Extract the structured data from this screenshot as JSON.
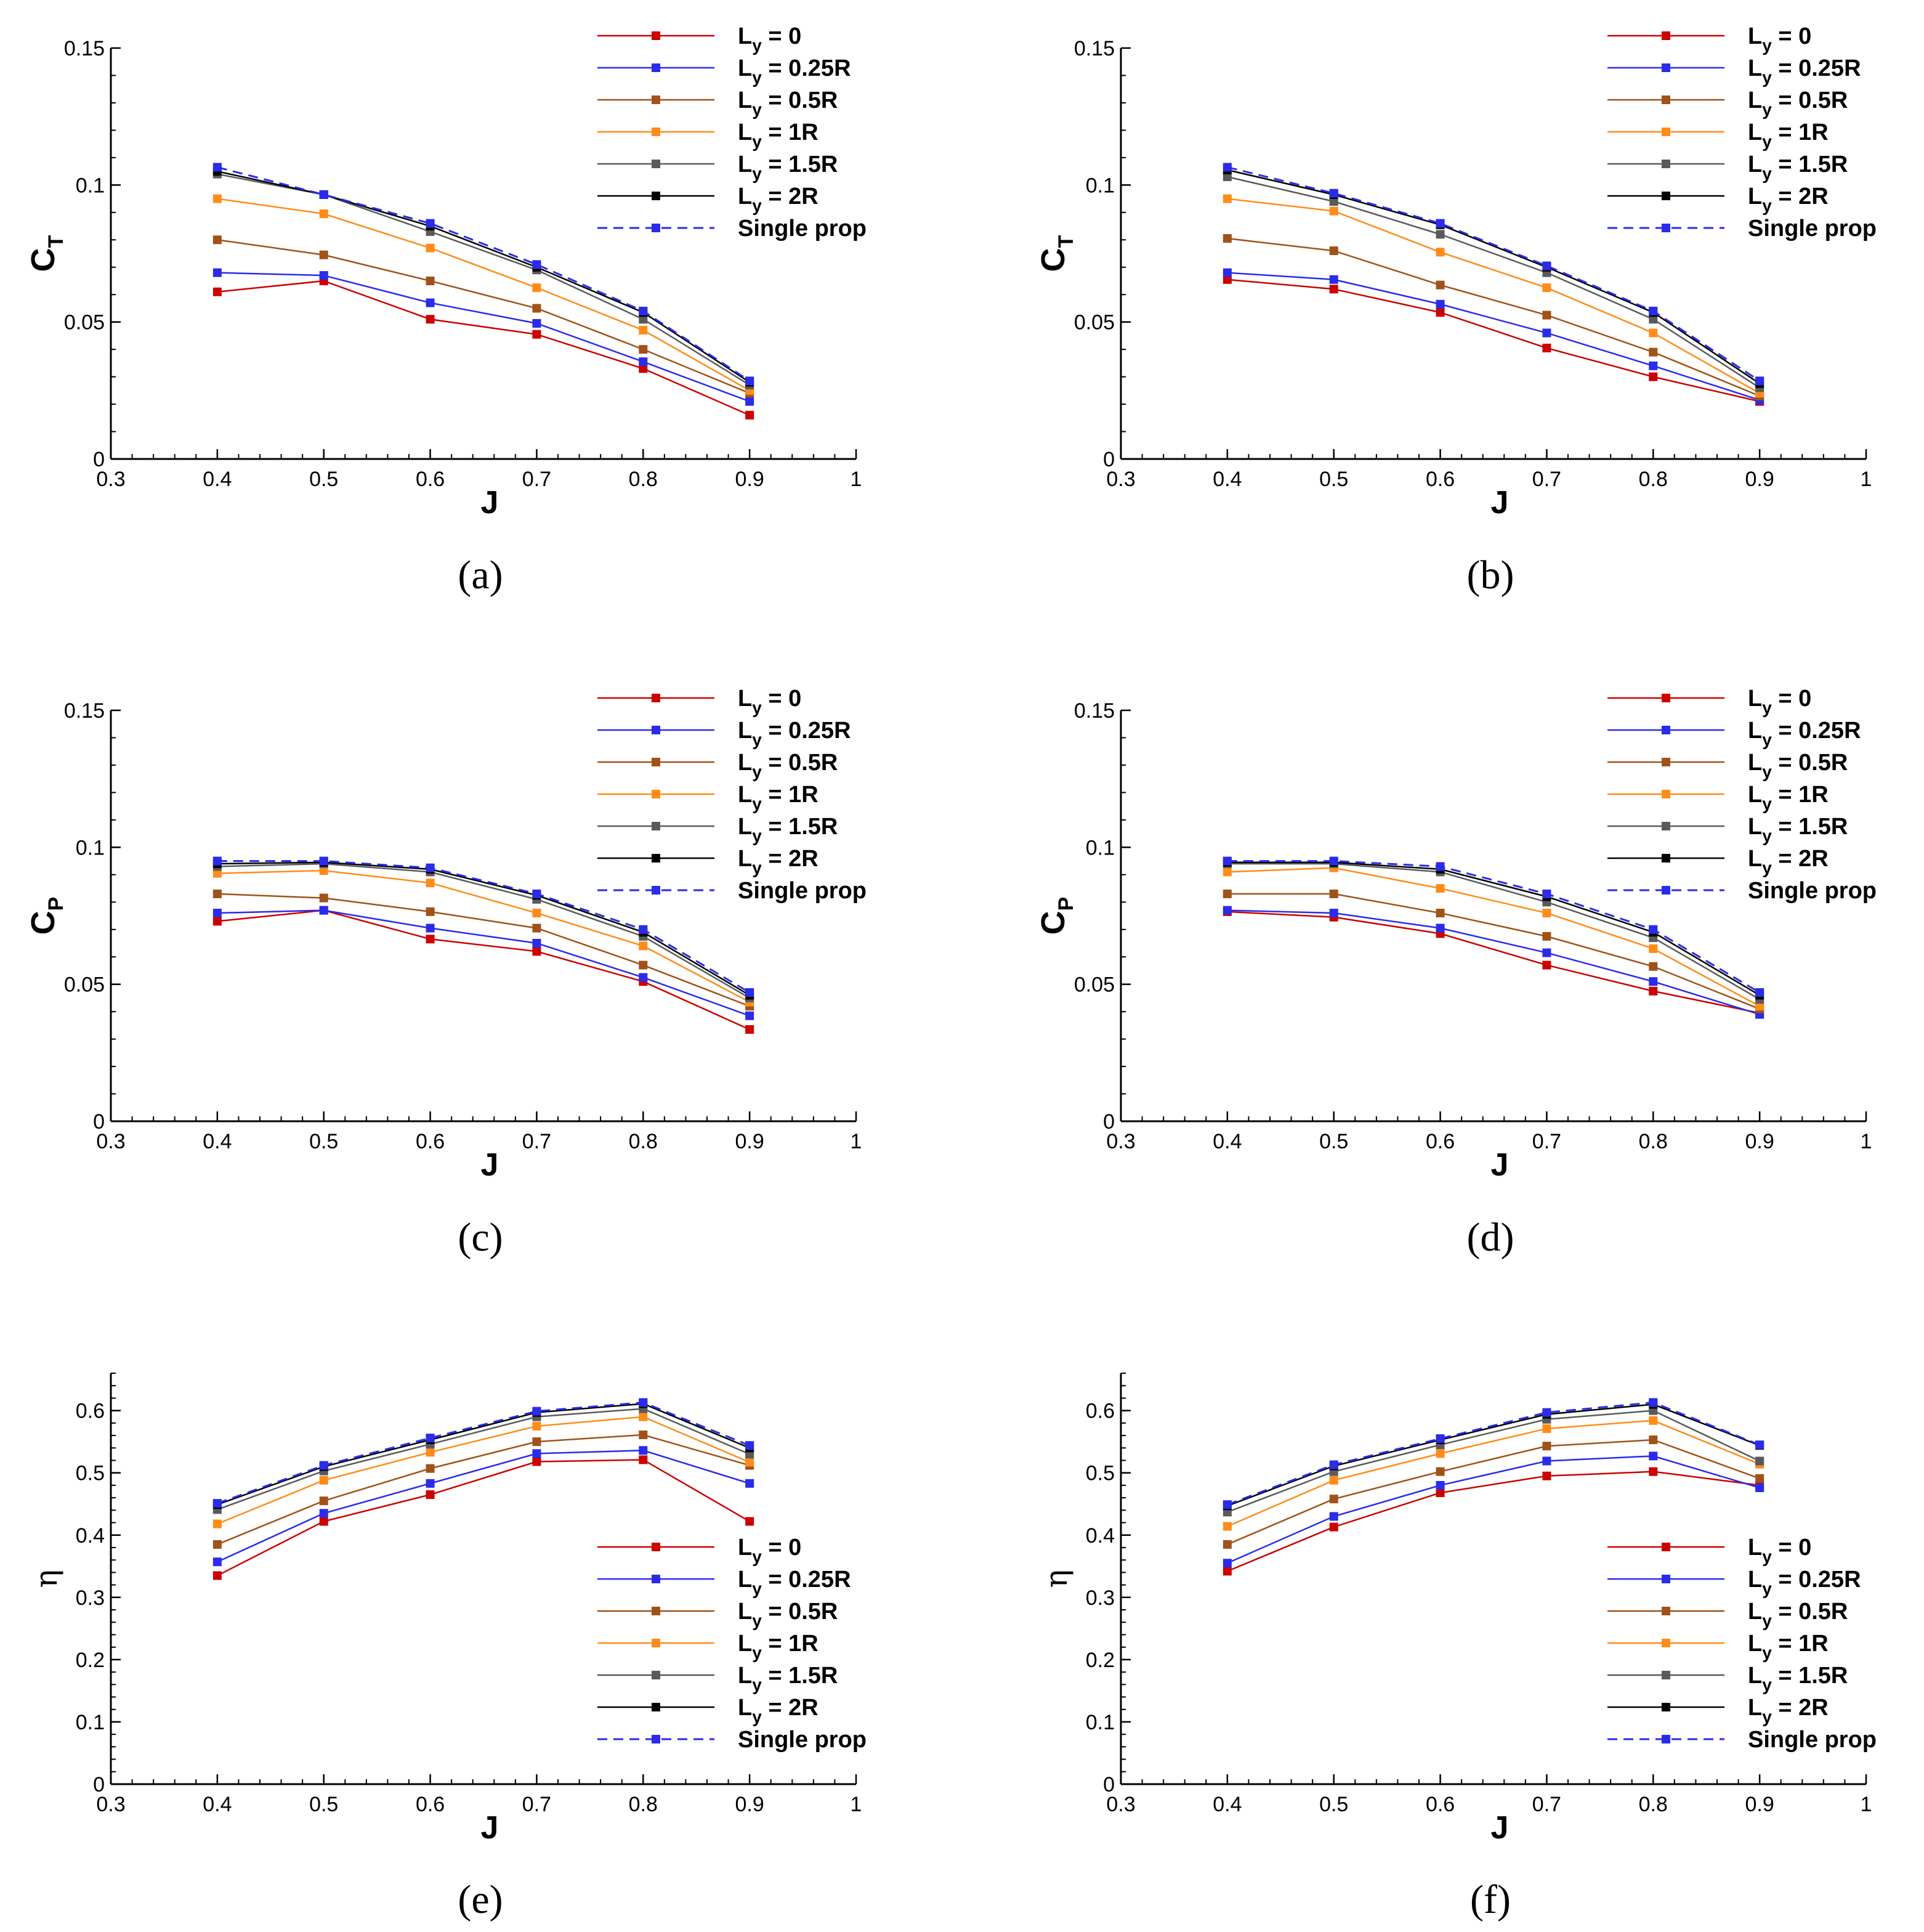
{
  "colors": {
    "Ly0": "#cc0000",
    "Ly025": "#2b2bea",
    "Ly05": "#a0521a",
    "Ly1": "#ff8c1a",
    "Ly15": "#5a5a5a",
    "Ly2": "#000000",
    "single": "#2b2bea"
  },
  "legend": [
    {
      "key": "Ly0",
      "base": "L",
      "sub": "y",
      "rest": " = 0"
    },
    {
      "key": "Ly025",
      "base": "L",
      "sub": "y",
      "rest": " = 0.25R"
    },
    {
      "key": "Ly05",
      "base": "L",
      "sub": "y",
      "rest": " = 0.5R"
    },
    {
      "key": "Ly1",
      "base": "L",
      "sub": "y",
      "rest": " = 1R"
    },
    {
      "key": "Ly15",
      "base": "L",
      "sub": "y",
      "rest": " = 1.5R"
    },
    {
      "key": "Ly2",
      "base": "L",
      "sub": "y",
      "rest": " = 2R"
    },
    {
      "key": "single",
      "base": "Single prop",
      "sub": "",
      "rest": ""
    }
  ],
  "chart_data": [
    {
      "type": "line",
      "caption": "(a)",
      "legend_position": "top-right",
      "ylabel": "C",
      "ylabel_sub": "T",
      "xlabel": "J",
      "xlim": [
        0.3,
        1
      ],
      "ylim": [
        0,
        0.15
      ],
      "xticks": [
        "0.3",
        "0.4",
        "0.5",
        "0.6",
        "0.7",
        "0.8",
        "0.9",
        "1"
      ],
      "yticks": [
        "0",
        "0.05",
        "0.1",
        "0.15"
      ],
      "x": [
        0.4,
        0.5,
        0.6,
        0.7,
        0.8,
        0.9
      ],
      "series": [
        {
          "key": "Ly0",
          "values": [
            0.061,
            0.065,
            0.051,
            0.0455,
            0.033,
            0.016
          ]
        },
        {
          "key": "Ly025",
          "values": [
            0.068,
            0.067,
            0.057,
            0.0495,
            0.0355,
            0.021
          ]
        },
        {
          "key": "Ly05",
          "values": [
            0.08,
            0.0745,
            0.065,
            0.055,
            0.04,
            0.024
          ]
        },
        {
          "key": "Ly1",
          "values": [
            0.095,
            0.0895,
            0.077,
            0.0625,
            0.047,
            0.025
          ]
        },
        {
          "key": "Ly15",
          "values": [
            0.104,
            0.0965,
            0.083,
            0.069,
            0.051,
            0.027
          ]
        },
        {
          "key": "Ly2",
          "values": [
            0.105,
            0.0965,
            0.085,
            0.07,
            0.0535,
            0.028
          ]
        },
        {
          "key": "single",
          "values": [
            0.1065,
            0.0965,
            0.086,
            0.071,
            0.054,
            0.0285
          ],
          "dashed": true
        }
      ]
    },
    {
      "type": "line",
      "caption": "(b)",
      "legend_position": "top-right",
      "ylabel": "C",
      "ylabel_sub": "T",
      "xlabel": "J",
      "xlim": [
        0.3,
        1
      ],
      "ylim": [
        0,
        0.15
      ],
      "xticks": [
        "0.3",
        "0.4",
        "0.5",
        "0.6",
        "0.7",
        "0.8",
        "0.9",
        "1"
      ],
      "yticks": [
        "0",
        "0.05",
        "0.1",
        "0.15"
      ],
      "x": [
        0.4,
        0.5,
        0.6,
        0.7,
        0.8,
        0.9
      ],
      "series": [
        {
          "key": "Ly0",
          "values": [
            0.0655,
            0.062,
            0.0535,
            0.0405,
            0.03,
            0.021
          ]
        },
        {
          "key": "Ly025",
          "values": [
            0.068,
            0.0655,
            0.0565,
            0.046,
            0.034,
            0.0215
          ]
        },
        {
          "key": "Ly05",
          "values": [
            0.0805,
            0.076,
            0.0635,
            0.0525,
            0.039,
            0.023
          ]
        },
        {
          "key": "Ly1",
          "values": [
            0.095,
            0.0905,
            0.0755,
            0.0625,
            0.046,
            0.024
          ]
        },
        {
          "key": "Ly15",
          "values": [
            0.103,
            0.094,
            0.082,
            0.068,
            0.051,
            0.026
          ]
        },
        {
          "key": "Ly2",
          "values": [
            0.1055,
            0.0965,
            0.0855,
            0.07,
            0.0535,
            0.0275
          ]
        },
        {
          "key": "single",
          "values": [
            0.1065,
            0.097,
            0.086,
            0.0705,
            0.054,
            0.0285
          ],
          "dashed": true
        }
      ]
    },
    {
      "type": "line",
      "caption": "(c)",
      "legend_position": "top-right",
      "ylabel": "C",
      "ylabel_sub": "P",
      "xlabel": "J",
      "xlim": [
        0.3,
        1
      ],
      "ylim": [
        0,
        0.15
      ],
      "xticks": [
        "0.3",
        "0.4",
        "0.5",
        "0.6",
        "0.7",
        "0.8",
        "0.9",
        "1"
      ],
      "yticks": [
        "0",
        "0.05",
        "0.1",
        "0.15"
      ],
      "x": [
        0.4,
        0.5,
        0.6,
        0.7,
        0.8,
        0.9
      ],
      "series": [
        {
          "key": "Ly0",
          "values": [
            0.073,
            0.077,
            0.0665,
            0.062,
            0.051,
            0.0335
          ]
        },
        {
          "key": "Ly025",
          "values": [
            0.076,
            0.077,
            0.0705,
            0.065,
            0.0525,
            0.0385
          ]
        },
        {
          "key": "Ly05",
          "values": [
            0.083,
            0.0815,
            0.0765,
            0.0705,
            0.057,
            0.042
          ]
        },
        {
          "key": "Ly1",
          "values": [
            0.0905,
            0.0915,
            0.087,
            0.076,
            0.064,
            0.0435
          ]
        },
        {
          "key": "Ly15",
          "values": [
            0.093,
            0.094,
            0.091,
            0.081,
            0.0675,
            0.045
          ]
        },
        {
          "key": "Ly2",
          "values": [
            0.094,
            0.0945,
            0.092,
            0.0825,
            0.069,
            0.046
          ]
        },
        {
          "key": "single",
          "values": [
            0.095,
            0.095,
            0.0925,
            0.083,
            0.07,
            0.047
          ],
          "dashed": true
        }
      ]
    },
    {
      "type": "line",
      "caption": "(d)",
      "legend_position": "top-right",
      "ylabel": "C",
      "ylabel_sub": "P",
      "xlabel": "J",
      "xlim": [
        0.3,
        1
      ],
      "ylim": [
        0,
        0.15
      ],
      "xticks": [
        "0.3",
        "0.4",
        "0.5",
        "0.6",
        "0.7",
        "0.8",
        "0.9",
        "1"
      ],
      "yticks": [
        "0",
        "0.05",
        "0.1",
        "0.15"
      ],
      "x": [
        0.4,
        0.5,
        0.6,
        0.7,
        0.8,
        0.9
      ],
      "series": [
        {
          "key": "Ly0",
          "values": [
            0.0765,
            0.0745,
            0.0685,
            0.057,
            0.0475,
            0.0395
          ]
        },
        {
          "key": "Ly025",
          "values": [
            0.077,
            0.076,
            0.0705,
            0.0615,
            0.051,
            0.039
          ]
        },
        {
          "key": "Ly05",
          "values": [
            0.083,
            0.083,
            0.076,
            0.0675,
            0.0565,
            0.041
          ]
        },
        {
          "key": "Ly1",
          "values": [
            0.091,
            0.0925,
            0.085,
            0.076,
            0.063,
            0.042
          ]
        },
        {
          "key": "Ly15",
          "values": [
            0.094,
            0.094,
            0.091,
            0.08,
            0.067,
            0.0445
          ]
        },
        {
          "key": "Ly2",
          "values": [
            0.0945,
            0.0945,
            0.092,
            0.082,
            0.069,
            0.046
          ]
        },
        {
          "key": "single",
          "values": [
            0.095,
            0.095,
            0.093,
            0.083,
            0.07,
            0.047
          ],
          "dashed": true
        }
      ]
    },
    {
      "type": "line",
      "caption": "(e)",
      "legend_position": "bottom-right",
      "ylabel": "η",
      "ylabel_sub": "",
      "xlabel": "J",
      "xlim": [
        0.3,
        1
      ],
      "ylim": [
        0,
        0.66
      ],
      "xticks": [
        "0.3",
        "0.4",
        "0.5",
        "0.6",
        "0.7",
        "0.8",
        "0.9",
        "1"
      ],
      "yticks": [
        "0",
        "0.1",
        "0.2",
        "0.3",
        "0.4",
        "0.5",
        "0.6"
      ],
      "x": [
        0.4,
        0.5,
        0.6,
        0.7,
        0.8,
        0.9
      ],
      "series": [
        {
          "key": "Ly0",
          "values": [
            0.335,
            0.422,
            0.465,
            0.518,
            0.521,
            0.422
          ]
        },
        {
          "key": "Ly025",
          "values": [
            0.357,
            0.435,
            0.483,
            0.531,
            0.536,
            0.483
          ]
        },
        {
          "key": "Ly05",
          "values": [
            0.385,
            0.455,
            0.507,
            0.55,
            0.561,
            0.512
          ]
        },
        {
          "key": "Ly1",
          "values": [
            0.418,
            0.488,
            0.533,
            0.575,
            0.59,
            0.517
          ]
        },
        {
          "key": "Ly15",
          "values": [
            0.441,
            0.503,
            0.546,
            0.59,
            0.603,
            0.53
          ]
        },
        {
          "key": "Ly2",
          "values": [
            0.449,
            0.51,
            0.553,
            0.597,
            0.611,
            0.54
          ]
        },
        {
          "key": "single",
          "values": [
            0.451,
            0.512,
            0.556,
            0.599,
            0.613,
            0.544
          ],
          "dashed": true
        }
      ]
    },
    {
      "type": "line",
      "caption": "(f)",
      "legend_position": "bottom-right",
      "ylabel": "η",
      "ylabel_sub": "",
      "xlabel": "J",
      "xlim": [
        0.3,
        1
      ],
      "ylim": [
        0,
        0.66
      ],
      "xticks": [
        "0.3",
        "0.4",
        "0.5",
        "0.6",
        "0.7",
        "0.8",
        "0.9",
        "1"
      ],
      "yticks": [
        "0",
        "0.1",
        "0.2",
        "0.3",
        "0.4",
        "0.5",
        "0.6"
      ],
      "x": [
        0.4,
        0.5,
        0.6,
        0.7,
        0.8,
        0.9
      ],
      "series": [
        {
          "key": "Ly0",
          "values": [
            0.342,
            0.413,
            0.468,
            0.495,
            0.502,
            0.48
          ]
        },
        {
          "key": "Ly025",
          "values": [
            0.355,
            0.43,
            0.48,
            0.519,
            0.527,
            0.476
          ]
        },
        {
          "key": "Ly05",
          "values": [
            0.385,
            0.458,
            0.502,
            0.543,
            0.553,
            0.491
          ]
        },
        {
          "key": "Ly1",
          "values": [
            0.414,
            0.488,
            0.531,
            0.571,
            0.584,
            0.514
          ]
        },
        {
          "key": "Ly15",
          "values": [
            0.437,
            0.502,
            0.545,
            0.586,
            0.6,
            0.519
          ]
        },
        {
          "key": "Ly2",
          "values": [
            0.447,
            0.511,
            0.553,
            0.594,
            0.61,
            0.544
          ]
        },
        {
          "key": "single",
          "values": [
            0.449,
            0.513,
            0.555,
            0.597,
            0.613,
            0.545
          ],
          "dashed": true
        }
      ]
    }
  ]
}
